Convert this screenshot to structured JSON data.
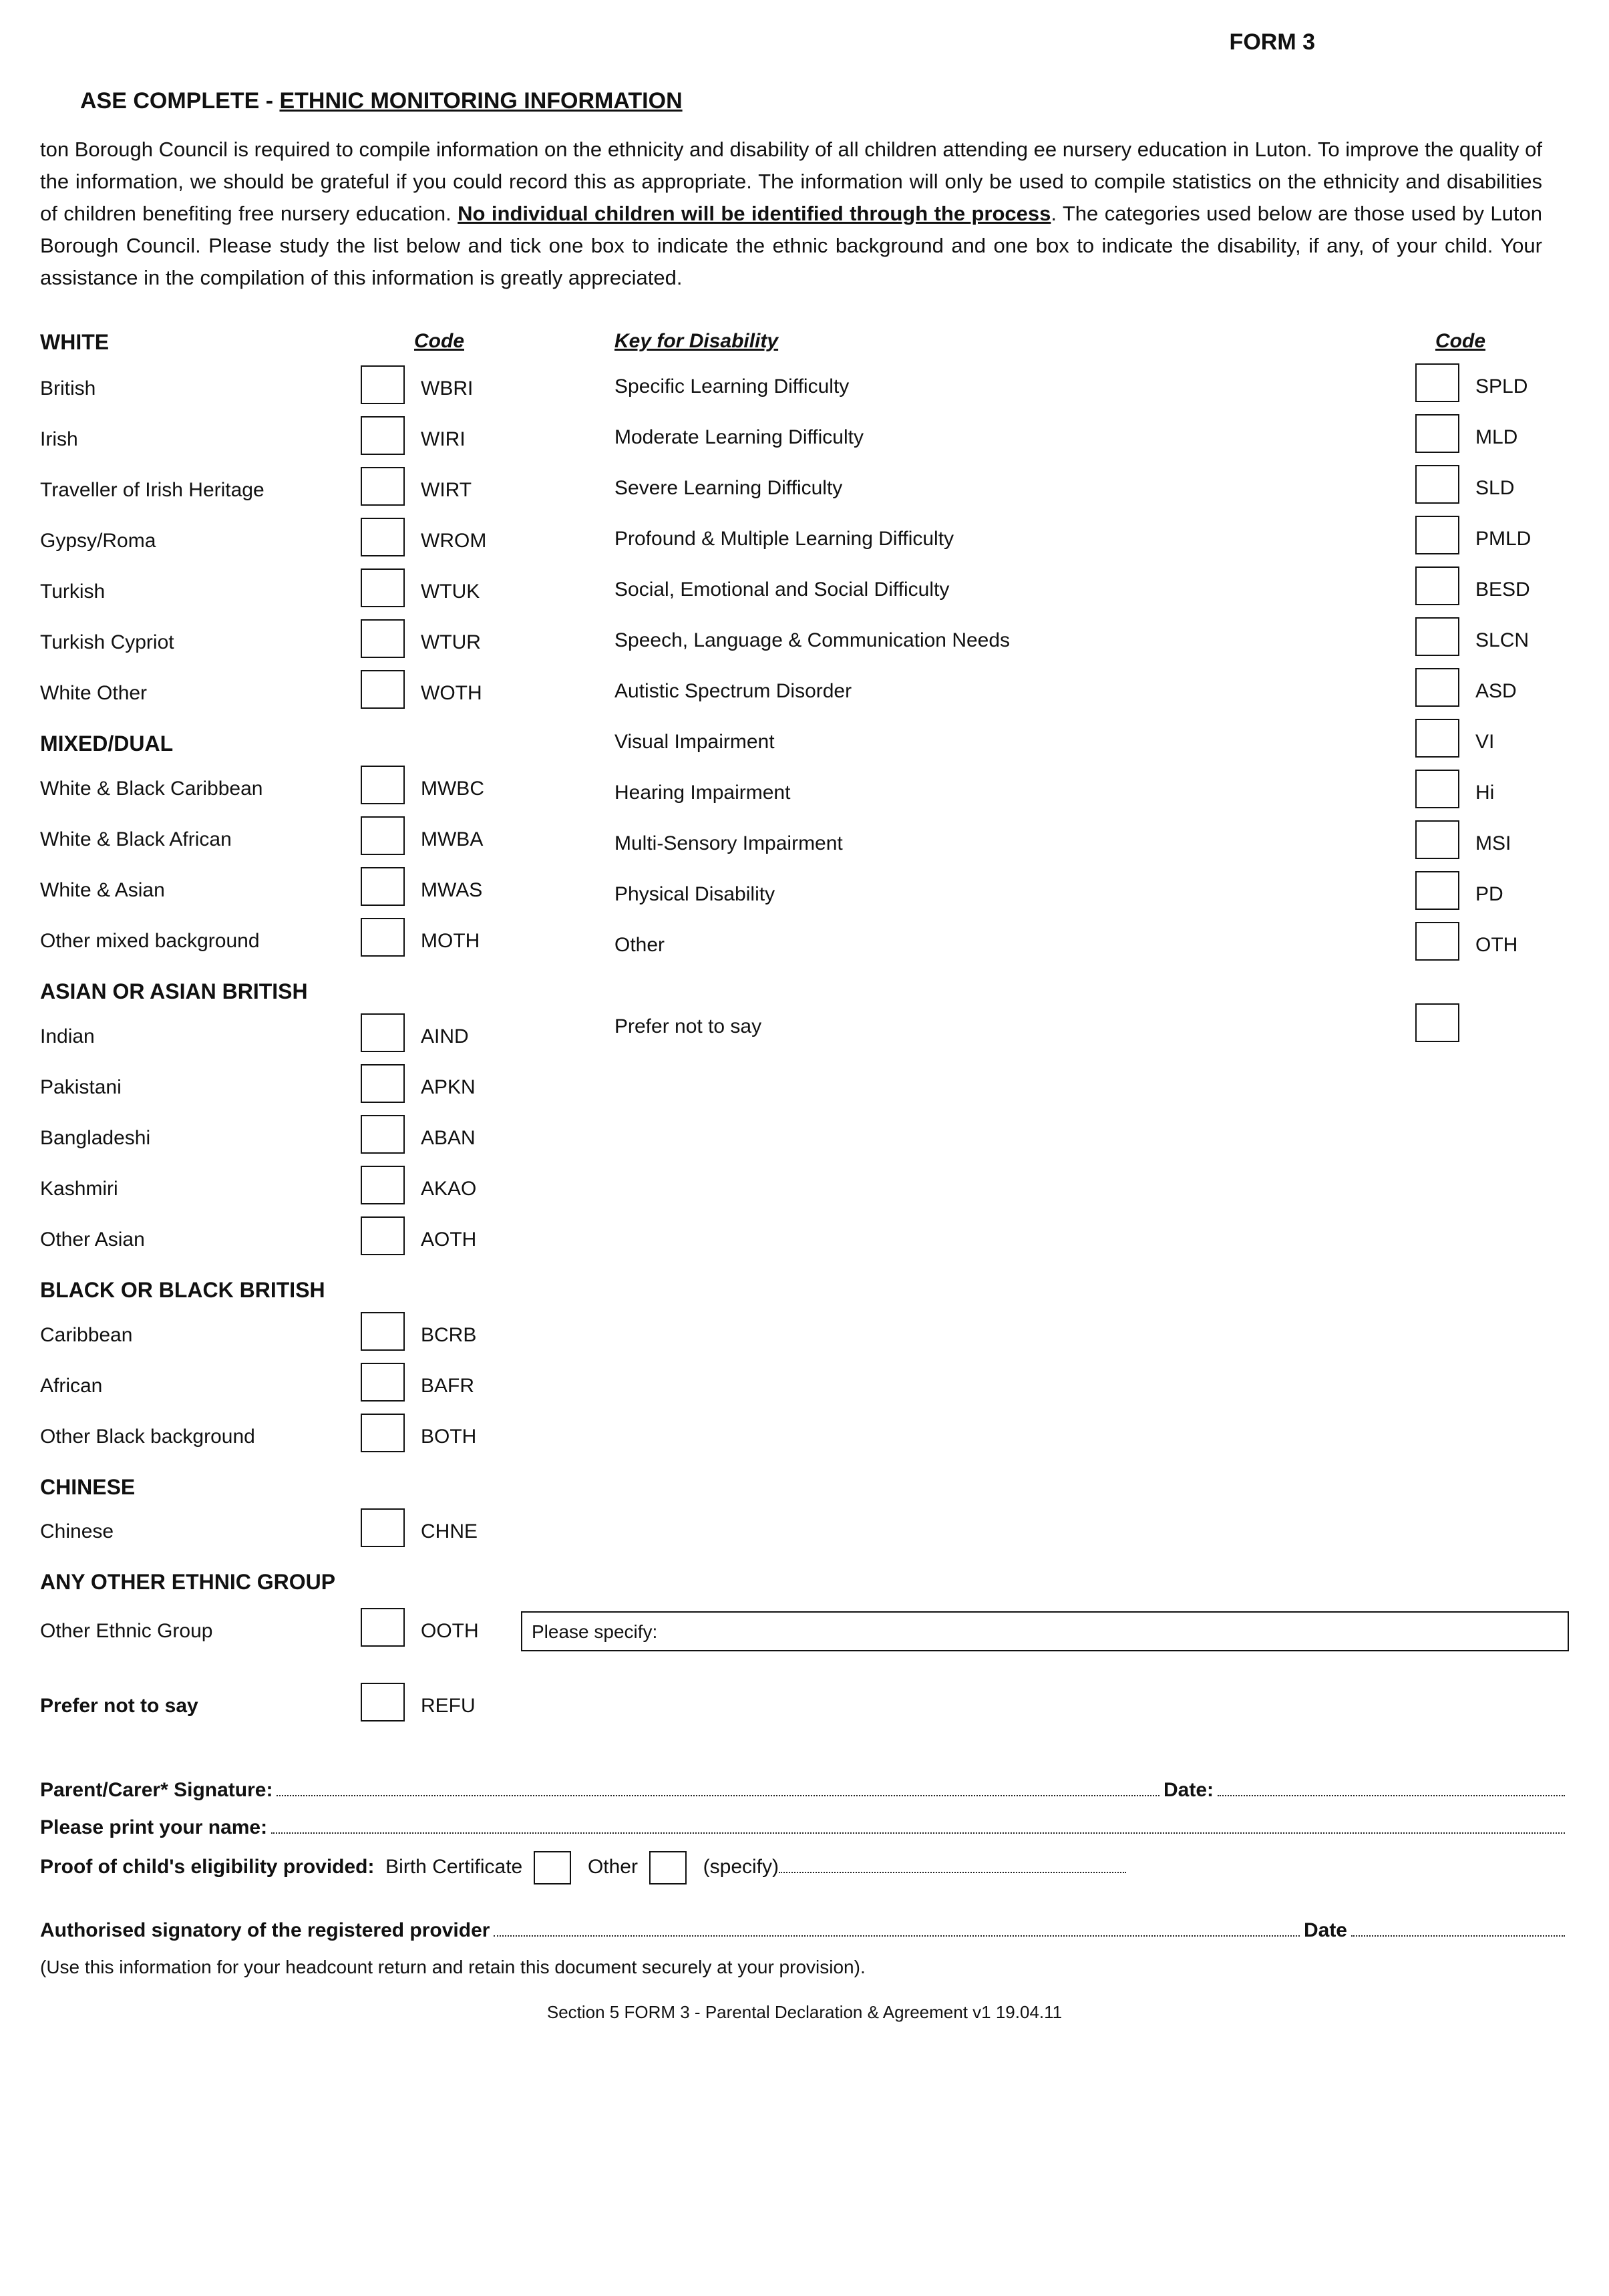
{
  "form_id": "FORM 3",
  "heading_prefix": "ASE COMPLETE - ",
  "heading_main": "ETHNIC MONITORING INFORMATION",
  "intro": {
    "p1a": "ton Borough Council is required to compile information on the ethnicity and disability of all children attending ee nursery education in Luton. To improve the quality of the information, we should be grateful if you could record this as appropriate. The information will only be used to compile statistics on the ethnicity and disabilities of children benefiting free nursery education. ",
    "p1b": "No individual children will be identified through the process",
    "p1c": ". The categories used below are those used by Luton Borough Council. Please study the list below and tick one box to indicate the ethnic background and one box to indicate the disability, if any, of your child. Your assistance in the compilation of this information is greatly appreciated."
  },
  "left_code_header": "Code",
  "right_key_header": "Key for Disability",
  "right_code_header": "Code",
  "groups": {
    "white": {
      "title": "WHITE",
      "rows": [
        {
          "label": "British",
          "code": "WBRI"
        },
        {
          "label": "Irish",
          "code": "WIRI"
        },
        {
          "label": "Traveller of Irish Heritage",
          "code": "WIRT"
        },
        {
          "label": "Gypsy/Roma",
          "code": "WROM"
        },
        {
          "label": "Turkish",
          "code": "WTUK"
        },
        {
          "label": "Turkish Cypriot",
          "code": "WTUR"
        },
        {
          "label": "White Other",
          "code": "WOTH"
        }
      ]
    },
    "mixed": {
      "title": "MIXED/DUAL",
      "rows": [
        {
          "label": "White & Black Caribbean",
          "code": "MWBC"
        },
        {
          "label": "White & Black African",
          "code": "MWBA"
        },
        {
          "label": "White & Asian",
          "code": "MWAS"
        },
        {
          "label": "Other mixed background",
          "code": "MOTH"
        }
      ]
    },
    "asian": {
      "title": "ASIAN OR ASIAN BRITISH",
      "rows": [
        {
          "label": "Indian",
          "code": "AIND"
        },
        {
          "label": "Pakistani",
          "code": "APKN"
        },
        {
          "label": "Bangladeshi",
          "code": "ABAN"
        },
        {
          "label": "Kashmiri",
          "code": "AKAO"
        },
        {
          "label": "Other Asian",
          "code": "AOTH"
        }
      ]
    },
    "black": {
      "title": "BLACK OR BLACK BRITISH",
      "rows": [
        {
          "label": "Caribbean",
          "code": "BCRB"
        },
        {
          "label": "African",
          "code": "BAFR"
        },
        {
          "label": "Other Black background",
          "code": "BOTH"
        }
      ]
    },
    "chinese": {
      "title": "CHINESE",
      "rows": [
        {
          "label": "Chinese",
          "code": "CHNE"
        }
      ]
    },
    "other": {
      "title": "ANY OTHER ETHNIC GROUP",
      "row": {
        "label": "Other Ethnic Group",
        "code": "OOTH",
        "specify_label": "Please specify:"
      }
    },
    "refuse": {
      "label": "Prefer not to say",
      "code": "REFU"
    }
  },
  "disability_rows": [
    {
      "label": "Specific Learning Difficulty",
      "code": "SPLD"
    },
    {
      "label": "Moderate Learning Difficulty",
      "code": "MLD"
    },
    {
      "label": "Severe Learning Difficulty",
      "code": "SLD"
    },
    {
      "label": "Profound & Multiple Learning Difficulty",
      "code": "PMLD"
    },
    {
      "label": "Social, Emotional and Social Difficulty",
      "code": "BESD"
    },
    {
      "label": "Speech, Language & Communication Needs",
      "code": "SLCN"
    },
    {
      "label": "Autistic Spectrum Disorder",
      "code": "ASD"
    },
    {
      "label": "Visual Impairment",
      "code": "VI"
    },
    {
      "label": "Hearing Impairment",
      "code": "Hi"
    },
    {
      "label": "Multi-Sensory Impairment",
      "code": "MSI"
    },
    {
      "label": "Physical Disability",
      "code": "PD"
    },
    {
      "label": "Other",
      "code": "OTH"
    }
  ],
  "disability_refuse": "Prefer not to say",
  "sig": {
    "parent_sig": "Parent/Carer* Signature:",
    "date": "Date:",
    "print_name": "Please print your name:",
    "proof_lead": "Proof of child's eligibility provided:",
    "proof_birth": "Birth Certificate",
    "proof_other": "Other",
    "proof_specify": "(specify)",
    "auth_lead": "Authorised signatory of the registered provider",
    "auth_date": "Date",
    "auth_note": "(Use this information for your headcount return and retain this document securely at your provision)."
  },
  "footer": "Section 5  FORM 3 - Parental Declaration & Agreement v1 19.04.11"
}
